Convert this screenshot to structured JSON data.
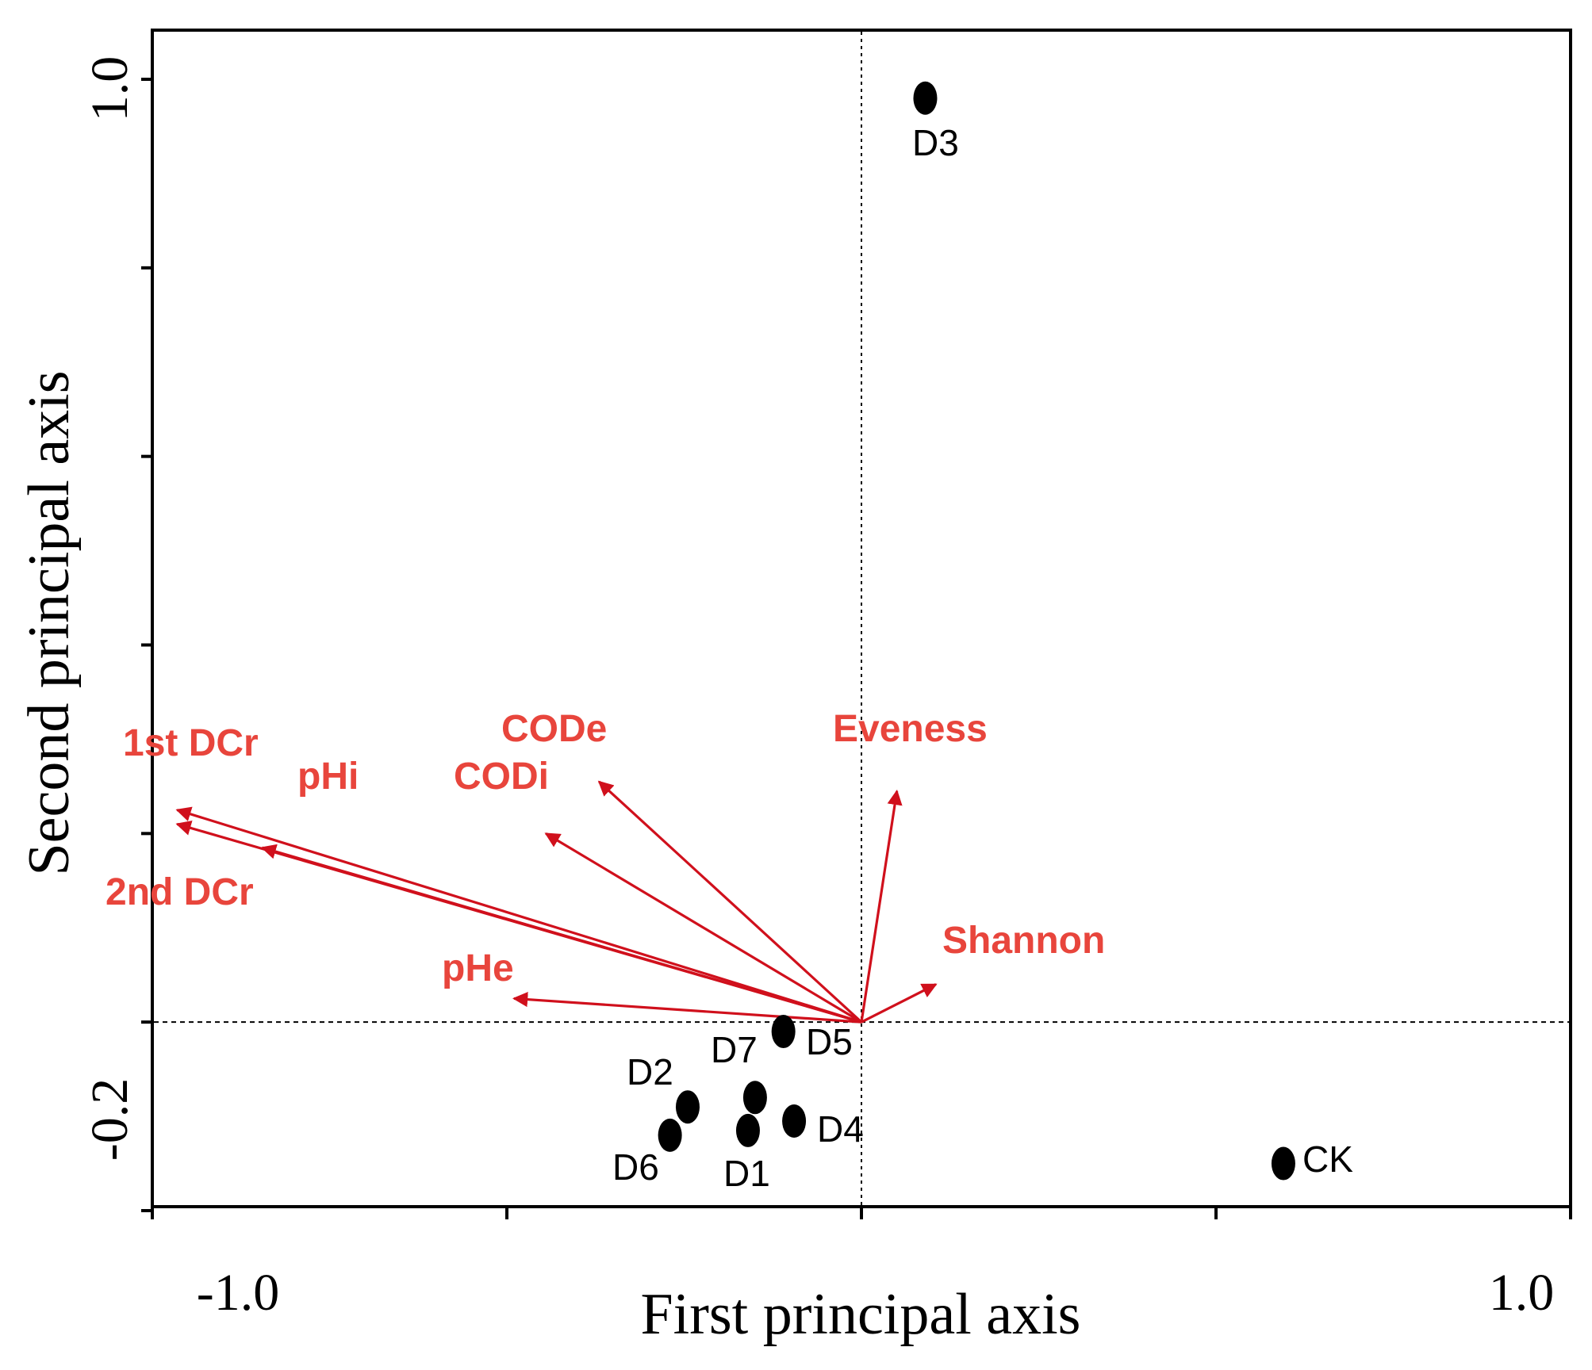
{
  "chart_data": {
    "type": "scatter",
    "subtype": "pca-biplot",
    "xlabel": "First principal axis",
    "ylabel": "Second principal axis",
    "xlim": [
      -1.0,
      1.0
    ],
    "ylim": [
      -0.2,
      1.0
    ],
    "x_tick_labels": [
      {
        "value": -1.0,
        "label": "-1.0"
      },
      {
        "value": 1.0,
        "label": "1.0"
      }
    ],
    "y_tick_labels": [
      {
        "value": -0.2,
        "label": "-0.2"
      },
      {
        "value": 1.0,
        "label": "1.0"
      }
    ],
    "reference_lines": {
      "x": 0.0,
      "y": 0.0
    },
    "colors": {
      "points": "#000000",
      "vectors": "#d0101c",
      "vector_labels": "#e8453c"
    },
    "points": [
      {
        "label": "D3",
        "x": 0.09,
        "y": 0.98
      },
      {
        "label": "D5",
        "x": -0.11,
        "y": -0.01
      },
      {
        "label": "D7",
        "x": -0.15,
        "y": -0.08
      },
      {
        "label": "D2",
        "x": -0.245,
        "y": -0.09
      },
      {
        "label": "D4",
        "x": -0.095,
        "y": -0.105
      },
      {
        "label": "D1",
        "x": -0.16,
        "y": -0.115
      },
      {
        "label": "D6",
        "x": -0.27,
        "y": -0.12
      },
      {
        "label": "CK",
        "x": 0.595,
        "y": -0.15
      }
    ],
    "vectors": [
      {
        "label": "1st DCr",
        "x": -0.965,
        "y": 0.225
      },
      {
        "label": "2nd DCr",
        "x": -0.965,
        "y": 0.21
      },
      {
        "label": "pHi",
        "x": -0.845,
        "y": 0.185
      },
      {
        "label": "CODe",
        "x": -0.37,
        "y": 0.255
      },
      {
        "label": "CODi",
        "x": -0.445,
        "y": 0.2
      },
      {
        "label": "Eveness",
        "x": 0.05,
        "y": 0.245
      },
      {
        "label": "Shannon",
        "x": 0.105,
        "y": 0.04
      },
      {
        "label": "pHe",
        "x": -0.49,
        "y": 0.025
      }
    ]
  }
}
